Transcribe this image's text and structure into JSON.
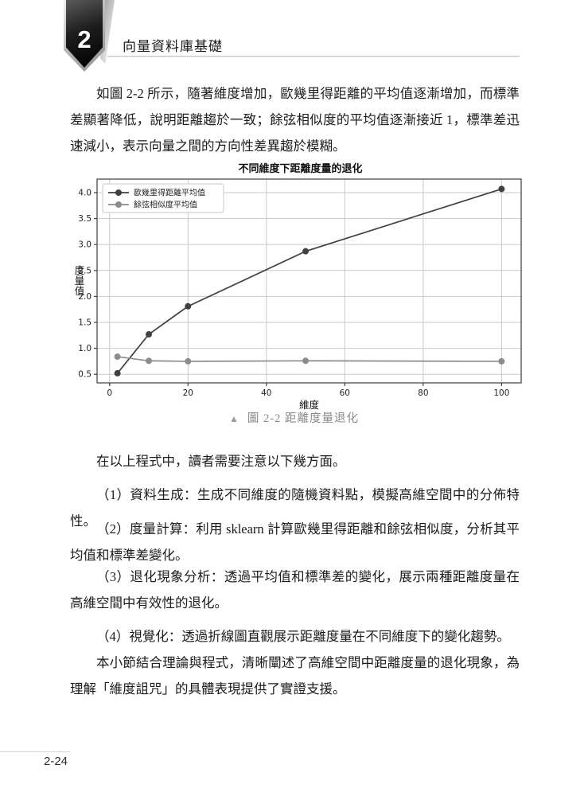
{
  "page": {
    "header": {
      "chapter_number": "2",
      "chapter_title": "向量資料庫基礎"
    },
    "paragraphs": {
      "intro": "如圖 2-2 所示，隨著維度增加，歐幾里得距離的平均值逐漸增加，而標準差顯著降低，說明距離趨於一致；餘弦相似度的平均值逐漸接近 1，標準差迅速減小，表示向量之間的方向性差異趨於模糊。",
      "note_intro": "在以上程式中，讀者需要注意以下幾方面。",
      "item1": "（1）資料生成：生成不同維度的隨機資料點，模擬高維空間中的分佈特性。",
      "item2": "（2）度量計算：利用 sklearn 計算歐幾里得距離和餘弦相似度，分析其平均值和標準差變化。",
      "item3": "（3）退化現象分析：透過平均值和標準差的變化，展示兩種距離度量在高維空間中有效性的退化。",
      "item4": "（4）視覺化：透過折線圖直觀展示距離度量在不同維度下的變化趨勢。",
      "conclusion": "本小節結合理論與程式，清晰闡述了高維空間中距離度量的退化現象，為理解「維度詛咒」的具體表現提供了實證支援。"
    },
    "figure": {
      "caption_marker": "▲",
      "caption": "圖 2-2  距離度量退化"
    },
    "footer": {
      "page_number": "2-24"
    }
  },
  "chart_data": {
    "type": "line",
    "title": "不同維度下距離度量的退化",
    "xlabel": "維度",
    "ylabel": "度量值",
    "x": [
      2,
      10,
      20,
      50,
      100
    ],
    "series": [
      {
        "name": "歐幾里得距離平均值",
        "color": "#404040",
        "values": [
          0.52,
          1.27,
          1.81,
          2.87,
          4.07
        ]
      },
      {
        "name": "餘弦相似度平均值",
        "color": "#8c8c8c",
        "values": [
          0.84,
          0.76,
          0.75,
          0.76,
          0.75
        ]
      }
    ],
    "xlim": [
      -3.2,
      105
    ],
    "ylim": [
      0.335,
      4.26
    ],
    "xticks": [
      0,
      20,
      40,
      60,
      80,
      100
    ],
    "yticks": [
      0.5,
      1.0,
      1.5,
      2.0,
      2.5,
      3.0,
      3.5,
      4.0
    ],
    "grid": true,
    "legend_position": "upper left"
  }
}
